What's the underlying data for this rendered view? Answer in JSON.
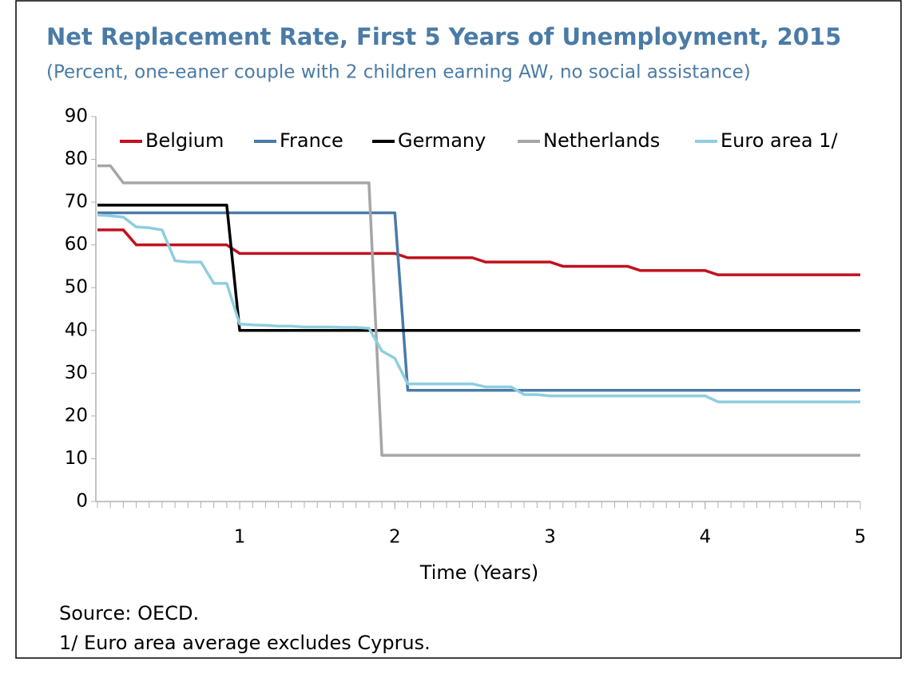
{
  "chart_data": {
    "type": "line",
    "title": "Net Replacement Rate, First 5 Years of Unemployment, 2015",
    "subtitle": "(Percent, one-eaner couple with 2 children earning AW, no social assistance)",
    "x_label": "Time (Years)",
    "notes": [
      "Source: OECD.",
      "1/ Euro area average excludes Cyprus."
    ],
    "x": [
      1,
      2,
      3,
      4,
      5,
      6,
      7,
      8,
      9,
      10,
      11,
      12,
      13,
      14,
      15,
      16,
      17,
      18,
      19,
      20,
      21,
      22,
      23,
      24,
      25,
      26,
      27,
      28,
      29,
      30,
      31,
      32,
      33,
      34,
      35,
      36,
      37,
      38,
      39,
      40,
      41,
      42,
      43,
      44,
      45,
      46,
      47,
      48,
      49,
      50,
      51,
      52,
      53,
      54,
      55,
      56,
      57,
      58,
      59,
      60
    ],
    "xlim": [
      1,
      60
    ],
    "xticks": [
      {
        "value": 12,
        "label": "1"
      },
      {
        "value": 24,
        "label": "2"
      },
      {
        "value": 36,
        "label": "3"
      },
      {
        "value": 48,
        "label": "4"
      },
      {
        "value": 60,
        "label": "5"
      }
    ],
    "ylim": [
      0,
      90
    ],
    "yticks": [
      0,
      10,
      20,
      30,
      40,
      50,
      60,
      70,
      80,
      90
    ],
    "grid": false,
    "legend": "top",
    "series": [
      {
        "name": "Belgium",
        "color": "#c0121e",
        "values": [
          63.5,
          63.5,
          63.5,
          60,
          60,
          60,
          60,
          60,
          60,
          60,
          60,
          58,
          58,
          58,
          58,
          58,
          58,
          58,
          58,
          58,
          58,
          58,
          58,
          58,
          57,
          57,
          57,
          57,
          57,
          57,
          56,
          56,
          56,
          56,
          56,
          56,
          55,
          55,
          55,
          55,
          55,
          55,
          54,
          54,
          54,
          54,
          54,
          54,
          53,
          53,
          53,
          53,
          53,
          53,
          53,
          53,
          53,
          53,
          53,
          53
        ]
      },
      {
        "name": "France",
        "color": "#4a7ba6",
        "values": [
          67.5,
          67.5,
          67.5,
          67.5,
          67.5,
          67.5,
          67.5,
          67.5,
          67.5,
          67.5,
          67.5,
          67.5,
          67.5,
          67.5,
          67.5,
          67.5,
          67.5,
          67.5,
          67.5,
          67.5,
          67.5,
          67.5,
          67.5,
          67.5,
          26,
          26,
          26,
          26,
          26,
          26,
          26,
          26,
          26,
          26,
          26,
          26,
          26,
          26,
          26,
          26,
          26,
          26,
          26,
          26,
          26,
          26,
          26,
          26,
          26,
          26,
          26,
          26,
          26,
          26,
          26,
          26,
          26,
          26,
          26,
          26
        ]
      },
      {
        "name": "Germany",
        "color": "#000000",
        "values": [
          69.3,
          69.3,
          69.3,
          69.3,
          69.3,
          69.3,
          69.3,
          69.3,
          69.3,
          69.3,
          69.3,
          40,
          40,
          40,
          40,
          40,
          40,
          40,
          40,
          40,
          40,
          40,
          40,
          40,
          40,
          40,
          40,
          40,
          40,
          40,
          40,
          40,
          40,
          40,
          40,
          40,
          40,
          40,
          40,
          40,
          40,
          40,
          40,
          40,
          40,
          40,
          40,
          40,
          40,
          40,
          40,
          40,
          40,
          40,
          40,
          40,
          40,
          40,
          40,
          40
        ]
      },
      {
        "name": "Netherlands",
        "color": "#a6a6a6",
        "values": [
          78.5,
          78.5,
          74.5,
          74.5,
          74.5,
          74.5,
          74.5,
          74.5,
          74.5,
          74.5,
          74.5,
          74.5,
          74.5,
          74.5,
          74.5,
          74.5,
          74.5,
          74.5,
          74.5,
          74.5,
          74.5,
          74.5,
          10.8,
          10.8,
          10.8,
          10.8,
          10.8,
          10.8,
          10.8,
          10.8,
          10.8,
          10.8,
          10.8,
          10.8,
          10.8,
          10.8,
          10.8,
          10.8,
          10.8,
          10.8,
          10.8,
          10.8,
          10.8,
          10.8,
          10.8,
          10.8,
          10.8,
          10.8,
          10.8,
          10.8,
          10.8,
          10.8,
          10.8,
          10.8,
          10.8,
          10.8,
          10.8,
          10.8,
          10.8,
          10.8
        ]
      },
      {
        "name": "Euro area 1/",
        "color": "#8fcde0",
        "values": [
          67,
          66.8,
          66.5,
          64.2,
          64,
          63.5,
          56.3,
          56,
          56,
          51,
          51,
          41.5,
          41.3,
          41.2,
          41,
          41,
          40.8,
          40.8,
          40.8,
          40.7,
          40.7,
          40.5,
          35.2,
          33.5,
          27.5,
          27.5,
          27.5,
          27.5,
          27.5,
          27.5,
          26.8,
          26.8,
          26.8,
          25,
          25,
          24.7,
          24.7,
          24.7,
          24.7,
          24.7,
          24.7,
          24.7,
          24.7,
          24.7,
          24.7,
          24.7,
          24.7,
          24.7,
          23.3,
          23.3,
          23.3,
          23.3,
          23.3,
          23.3,
          23.3,
          23.3,
          23.3,
          23.3,
          23.3,
          23.3
        ]
      }
    ]
  }
}
